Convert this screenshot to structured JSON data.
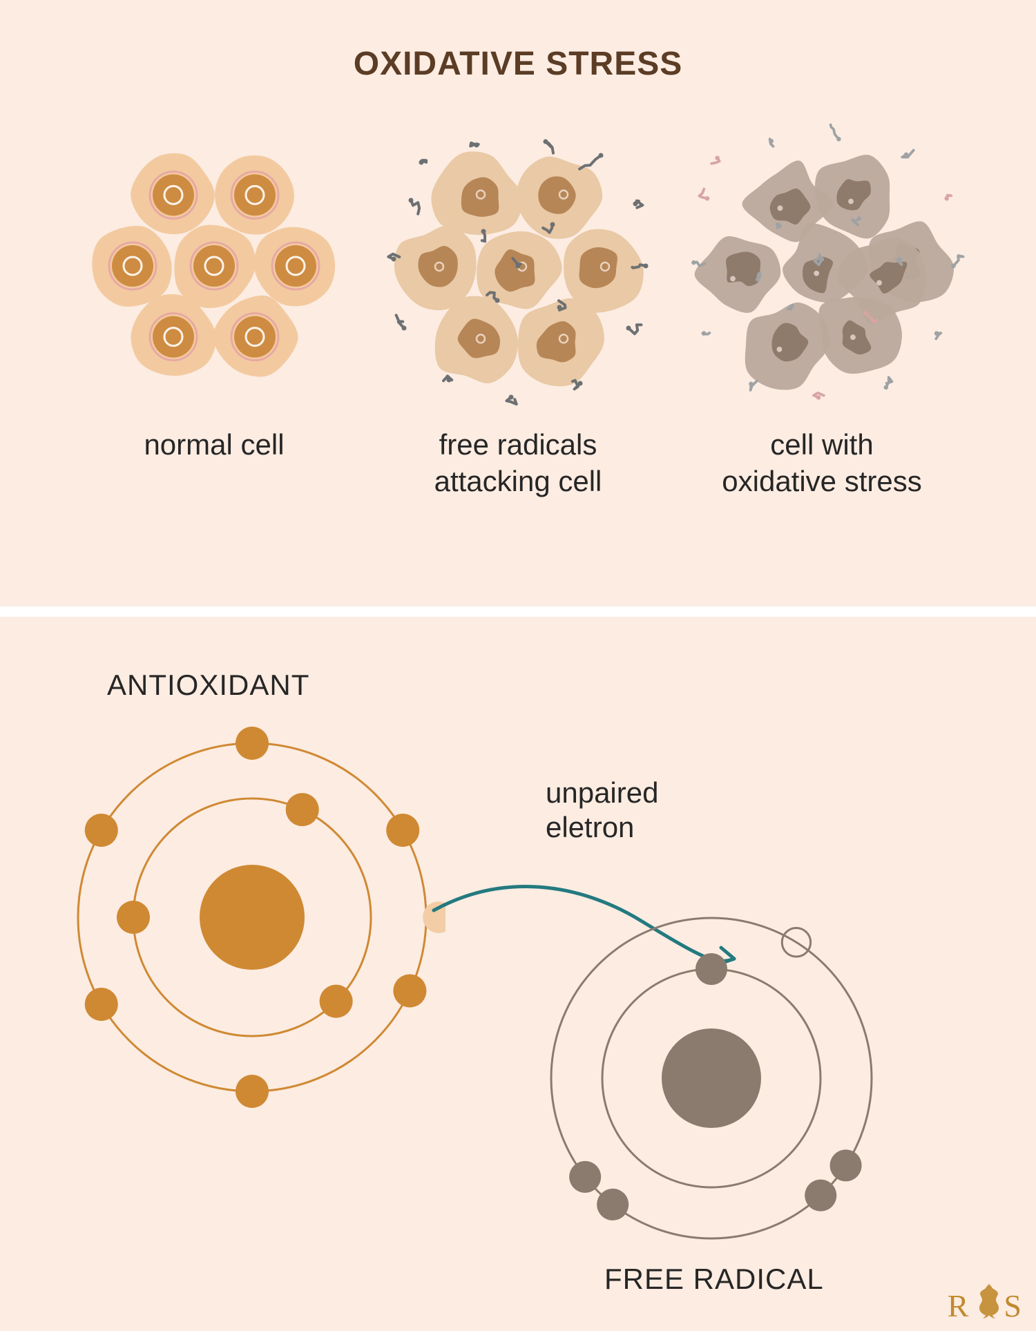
{
  "title": "OXIDATIVE STRESS",
  "top_panel": {
    "background": "#fcece2",
    "cells": [
      {
        "label": "normal cell"
      },
      {
        "label": "free radicals\nattacking cell"
      },
      {
        "label": "cell with\noxidative stress"
      }
    ],
    "style": {
      "normal": {
        "cytoplasm_fill": "#f3caa0",
        "nucleus_fill": "#ce8c42",
        "nucleus_ring": "#e7a9a3",
        "nucleus_inner_ring": "#fdf3ea"
      },
      "attacked": {
        "cytoplasm_fill": "#e9c9a6",
        "nucleus_fill": "#b78656",
        "radical_color": "#6d7072"
      },
      "stressed": {
        "cytoplasm_fill": "#bba99c",
        "nucleus_fill": "#8f7b6b",
        "radical_gray": "#9ea2a4",
        "radical_pink": "#d8a4a6"
      }
    }
  },
  "bottom_panel": {
    "background": "#fcece2",
    "antioxidant_label": "ANTIOXIDANT",
    "free_radical_label": "FREE RADICAL",
    "unpaired_label": "unpaired\neletron",
    "antioxidant": {
      "orbit_color": "#cf8933",
      "nucleus_color": "#cf8933",
      "electron_color": "#cf8933",
      "donated_electron_color": "#f2cda5",
      "orbit_stroke": 3,
      "outer_r": 252,
      "inner_r": 172,
      "nucleus_r": 76,
      "electron_r": 24,
      "outer_electron_angles_deg": [
        -90,
        -30,
        25,
        90,
        150,
        210
      ],
      "inner_electron_angles_deg": [
        -65,
        45,
        180
      ],
      "donated_angle_deg": 0
    },
    "free_radical": {
      "orbit_color": "#8b7a6e",
      "nucleus_color": "#8b7a6e",
      "electron_color": "#8b7a6e",
      "orbit_stroke": 3,
      "outer_r": 232,
      "inner_r": 158,
      "nucleus_r": 72,
      "electron_r": 23,
      "outer_pair_angles_deg": [
        33,
        47,
        128,
        142
      ],
      "inner_single_angle_deg": -90,
      "unpaired_ring_angle_deg": -58
    },
    "arrow_color": "#237a7f"
  },
  "logo": {
    "left": "R",
    "right": "S",
    "color": "#c18a2c"
  }
}
